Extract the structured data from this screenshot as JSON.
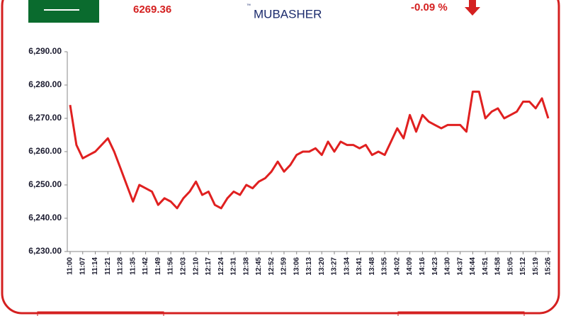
{
  "header": {
    "index_value": "6269.36",
    "change": "-0.09 %",
    "logo": "MUBASHER",
    "logo_mark": "™"
  },
  "chart_data": {
    "type": "line",
    "color": "#e02020",
    "categories": [
      "11:00",
      null,
      "11:07",
      null,
      "11:14",
      null,
      "11:21",
      null,
      "11:28",
      null,
      "11:35",
      null,
      "11:42",
      null,
      "11:49",
      null,
      "11:56",
      null,
      "12:03",
      null,
      "12:10",
      null,
      "12:17",
      null,
      "12:24",
      null,
      "12:31",
      null,
      "12:38",
      null,
      "12:45",
      null,
      "12:52",
      null,
      "12:59",
      null,
      "13:06",
      null,
      "13:13",
      null,
      "13:20",
      null,
      "13:27",
      null,
      "13:34",
      null,
      "13:41",
      null,
      "13:48",
      null,
      "13:55",
      null,
      "14:02",
      null,
      "14:09",
      null,
      "14:16",
      null,
      "14:23",
      null,
      "14:30",
      null,
      "14:37",
      null,
      "14:44",
      null,
      "14:51",
      null,
      "14:58",
      null,
      "15:05",
      null,
      "15:12",
      null,
      "15:19",
      null,
      "15:26"
    ],
    "values": [
      6274,
      6262,
      6258,
      6259,
      6260,
      6262,
      6264,
      6260,
      6255,
      6250,
      6245,
      6250,
      6249,
      6248,
      6244,
      6246,
      6245,
      6243,
      6246,
      6248,
      6251,
      6247,
      6248,
      6244,
      6243,
      6246,
      6248,
      6247,
      6250,
      6249,
      6251,
      6252,
      6254,
      6257,
      6254,
      6256,
      6259,
      6260,
      6260,
      6261,
      6259,
      6263,
      6260,
      6263,
      6262,
      6262,
      6261,
      6262,
      6259,
      6260,
      6259,
      6263,
      6267,
      6264,
      6271,
      6266,
      6271,
      6269,
      6268,
      6267,
      6268,
      6268,
      6268,
      6266,
      6278,
      6278,
      6270,
      6272,
      6273,
      6270,
      6271,
      6272,
      6275,
      6275,
      6273,
      6276,
      6270
    ],
    "ylim": [
      6230,
      6290
    ],
    "yticks": [
      {
        "value": 6230,
        "label": "6,230.00"
      },
      {
        "value": 6240,
        "label": "6,240.00"
      },
      {
        "value": 6250,
        "label": "6,250.00"
      },
      {
        "value": 6260,
        "label": "6,260.00"
      },
      {
        "value": 6270,
        "label": "6,270.00"
      },
      {
        "value": 6280,
        "label": "6,280.00"
      },
      {
        "value": 6290,
        "label": "6,290.00"
      }
    ]
  }
}
